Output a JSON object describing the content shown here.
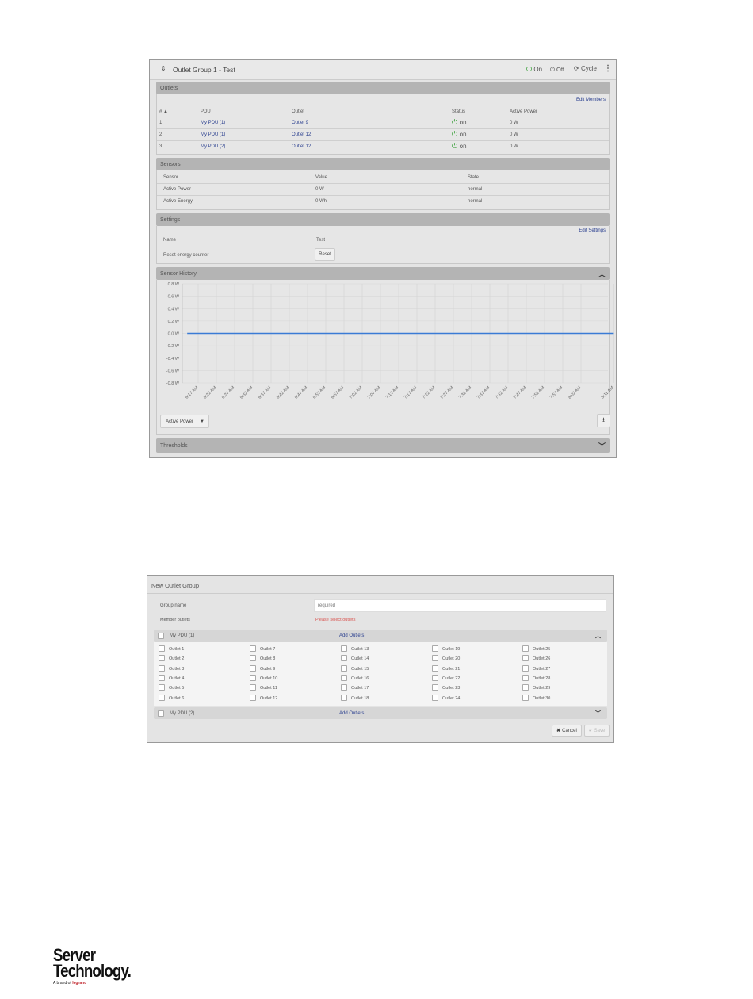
{
  "group_view": {
    "title": "Outlet Group 1 - Test",
    "actions": {
      "on": "On",
      "off": "Off",
      "cycle": "Cycle"
    },
    "outlets": {
      "section": "Outlets",
      "edit_link": "Edit Members",
      "columns": [
        "# ▲",
        "PDU",
        "Outlet",
        "Status",
        "Active Power"
      ],
      "rows": [
        [
          "1",
          "My PDU (1)",
          "Outlet 9",
          "on",
          "0 W"
        ],
        [
          "2",
          "My PDU (1)",
          "Outlet 12",
          "on",
          "0 W"
        ],
        [
          "3",
          "My PDU (2)",
          "Outlet 12",
          "on",
          "0 W"
        ]
      ]
    },
    "sensors": {
      "section": "Sensors",
      "columns": [
        "Sensor",
        "Value",
        "State"
      ],
      "rows": [
        [
          "Active Power",
          "0 W",
          "normal"
        ],
        [
          "Active Energy",
          "0 Wh",
          "normal"
        ]
      ]
    },
    "settings": {
      "section": "Settings",
      "edit_link": "Edit Settings",
      "name_label": "Name",
      "name_value": "Test",
      "reset_label": "Reset energy counter",
      "reset_button": "Reset"
    },
    "sensor_history": {
      "section": "Sensor History",
      "dropdown": "Active Power"
    },
    "thresholds": {
      "section": "Thresholds"
    }
  },
  "chart_data": {
    "type": "line",
    "x_ticks": [
      "6:17 AM",
      "6:22 AM",
      "6:27 AM",
      "6:32 AM",
      "6:37 AM",
      "6:42 AM",
      "6:47 AM",
      "6:52 AM",
      "6:57 AM",
      "7:02 AM",
      "7:07 AM",
      "7:12 AM",
      "7:17 AM",
      "7:22 AM",
      "7:27 AM",
      "7:32 AM",
      "7:37 AM",
      "7:42 AM",
      "7:47 AM",
      "7:52 AM",
      "7:57 AM",
      "8:02 AM",
      "8:11 AM"
    ],
    "y_ticks": [
      "0.8 W",
      "0.6 W",
      "0.4 W",
      "0.2 W",
      "0.0 W",
      "-0.2 W",
      "-0.4 W",
      "-0.6 W",
      "-0.8 W"
    ],
    "ylim": [
      -0.8,
      0.8
    ],
    "series": [
      {
        "x": [
          "6:14 AM",
          "8:11 AM"
        ],
        "values": [
          0,
          0
        ],
        "color": "#3a7bd5"
      }
    ],
    "grid": true
  },
  "new_group": {
    "title": "New Outlet Group",
    "group_name_label": "Group name",
    "group_name_placeholder": "required",
    "member_label": "Member outlets",
    "error": "Please select outlets",
    "error_color": "#d9534f",
    "pdus": [
      {
        "name": "My PDU (1)",
        "add": "Add Outlets"
      },
      {
        "name": "My PDU (2)",
        "add": "Add Outlets"
      }
    ],
    "outlets": [
      "Outlet 1",
      "Outlet 2",
      "Outlet 3",
      "Outlet 4",
      "Outlet 5",
      "Outlet 6",
      "Outlet 7",
      "Outlet 8",
      "Outlet 9",
      "Outlet 10",
      "Outlet 11",
      "Outlet 12",
      "Outlet 13",
      "Outlet 14",
      "Outlet 15",
      "Outlet 16",
      "Outlet 17",
      "Outlet 18",
      "Outlet 19",
      "Outlet 20",
      "Outlet 21",
      "Outlet 22",
      "Outlet 23",
      "Outlet 24",
      "Outlet 25",
      "Outlet 26",
      "Outlet 27",
      "Outlet 28",
      "Outlet 29",
      "Outlet 30"
    ],
    "cancel": "Cancel",
    "save": "Save"
  },
  "logo": {
    "line1": "Server",
    "line2": "Technology.",
    "tagline": "A brand of legrand"
  }
}
